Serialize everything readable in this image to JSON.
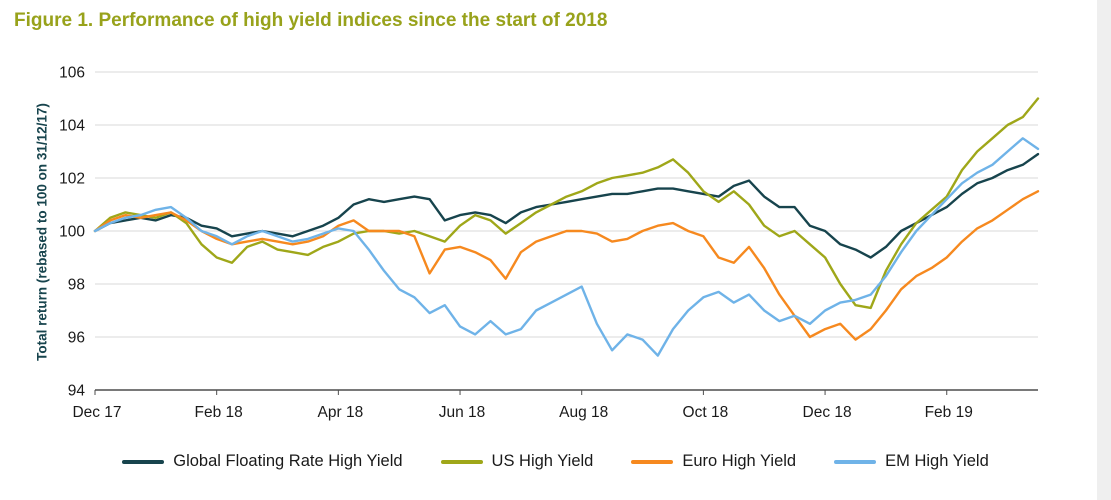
{
  "figure": {
    "title": "Figure 1. Performance of high yield indices since the start of 2018"
  },
  "colors": {
    "title": "#98a21b",
    "ylabel": "#17444d",
    "axis_text": "#1a1a1a",
    "grid": "#d8d8d8",
    "axis_line": "#4d4d4d",
    "background": "#ffffff"
  },
  "chart_data": {
    "type": "line",
    "title": "Figure 1. Performance of high yield indices since the start of 2018",
    "ylabel": "Total return (rebased to 100 on 31/12/17)",
    "xlabel": "",
    "ylim": [
      94,
      106
    ],
    "yticks": [
      94,
      96,
      98,
      100,
      102,
      104,
      106
    ],
    "xlim": [
      0,
      15.5
    ],
    "x_unit": "months since 31/12/17",
    "x_start": 0,
    "x_step": 0.25,
    "grid": "horizontal",
    "legend_position": "bottom",
    "xticks": [
      {
        "x": 0,
        "label": "Dec 17"
      },
      {
        "x": 2,
        "label": "Feb 18"
      },
      {
        "x": 4,
        "label": "Apr 18"
      },
      {
        "x": 6,
        "label": "Jun 18"
      },
      {
        "x": 8,
        "label": "Aug 18"
      },
      {
        "x": 10,
        "label": "Oct 18"
      },
      {
        "x": 12,
        "label": "Dec 18"
      },
      {
        "x": 14,
        "label": "Feb 19"
      }
    ],
    "series": [
      {
        "name": "Global Floating Rate High Yield",
        "color": "#17444d",
        "values": [
          100.0,
          100.3,
          100.4,
          100.5,
          100.4,
          100.6,
          100.5,
          100.2,
          100.1,
          99.8,
          99.9,
          100.0,
          99.9,
          99.8,
          100.0,
          100.2,
          100.5,
          101.0,
          101.2,
          101.1,
          101.2,
          101.3,
          101.2,
          100.4,
          100.6,
          100.7,
          100.6,
          100.3,
          100.7,
          100.9,
          101.0,
          101.1,
          101.2,
          101.3,
          101.4,
          101.4,
          101.5,
          101.6,
          101.6,
          101.5,
          101.4,
          101.3,
          101.7,
          101.9,
          101.3,
          100.9,
          100.9,
          100.2,
          100.0,
          99.5,
          99.3,
          99.0,
          99.4,
          100.0,
          100.3,
          100.6,
          100.9,
          101.4,
          101.8,
          102.0,
          102.3,
          102.5,
          102.9
        ]
      },
      {
        "name": "US High Yield",
        "color": "#9fa719",
        "values": [
          100.0,
          100.5,
          100.7,
          100.6,
          100.5,
          100.7,
          100.3,
          99.5,
          99.0,
          98.8,
          99.4,
          99.6,
          99.3,
          99.2,
          99.1,
          99.4,
          99.6,
          99.9,
          100.0,
          100.0,
          99.9,
          100.0,
          99.8,
          99.6,
          100.2,
          100.6,
          100.4,
          99.9,
          100.3,
          100.7,
          101.0,
          101.3,
          101.5,
          101.8,
          102.0,
          102.1,
          102.2,
          102.4,
          102.7,
          102.2,
          101.5,
          101.1,
          101.5,
          101.0,
          100.2,
          99.8,
          100.0,
          99.5,
          99.0,
          98.0,
          97.2,
          97.1,
          98.5,
          99.5,
          100.3,
          100.8,
          101.3,
          102.3,
          103.0,
          103.5,
          104.0,
          104.3,
          105.0
        ]
      },
      {
        "name": "Euro High Yield",
        "color": "#f6891f",
        "values": [
          100.0,
          100.4,
          100.6,
          100.5,
          100.6,
          100.7,
          100.4,
          100.0,
          99.7,
          99.5,
          99.6,
          99.7,
          99.6,
          99.5,
          99.6,
          99.8,
          100.2,
          100.4,
          100.0,
          100.0,
          100.0,
          99.8,
          98.4,
          99.3,
          99.4,
          99.2,
          98.9,
          98.2,
          99.2,
          99.6,
          99.8,
          100.0,
          100.0,
          99.9,
          99.6,
          99.7,
          100.0,
          100.2,
          100.3,
          100.0,
          99.8,
          99.0,
          98.8,
          99.4,
          98.6,
          97.6,
          96.8,
          96.0,
          96.3,
          96.5,
          95.9,
          96.3,
          97.0,
          97.8,
          98.3,
          98.6,
          99.0,
          99.6,
          100.1,
          100.4,
          100.8,
          101.2,
          101.5
        ]
      },
      {
        "name": "EM High Yield",
        "color": "#6fb3e8",
        "values": [
          100.0,
          100.3,
          100.5,
          100.6,
          100.8,
          100.9,
          100.5,
          100.0,
          99.8,
          99.5,
          99.8,
          100.0,
          99.8,
          99.6,
          99.7,
          99.9,
          100.1,
          100.0,
          99.3,
          98.5,
          97.8,
          97.5,
          96.9,
          97.2,
          96.4,
          96.1,
          96.6,
          96.1,
          96.3,
          97.0,
          97.3,
          97.6,
          97.9,
          96.5,
          95.5,
          96.1,
          95.9,
          95.3,
          96.3,
          97.0,
          97.5,
          97.7,
          97.3,
          97.6,
          97.0,
          96.6,
          96.8,
          96.5,
          97.0,
          97.3,
          97.4,
          97.6,
          98.3,
          99.2,
          100.0,
          100.6,
          101.2,
          101.8,
          102.2,
          102.5,
          103.0,
          103.5,
          103.1
        ]
      }
    ]
  }
}
